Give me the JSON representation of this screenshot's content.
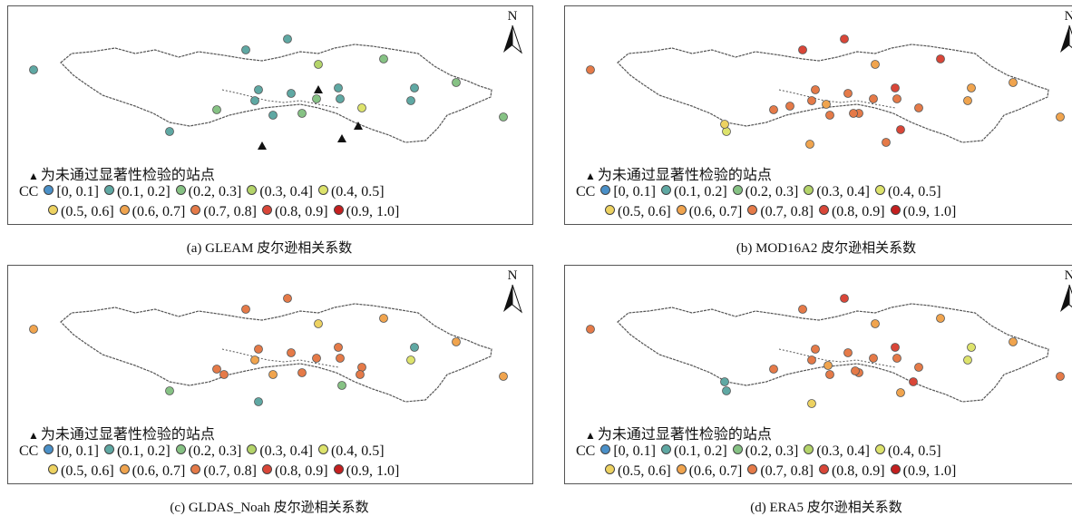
{
  "north_label": "N",
  "note_text": "为未通过显著性检验的站点",
  "legend_title": "CC",
  "legend": [
    {
      "label": "[0, 0.1]",
      "color": "#4a90c8"
    },
    {
      "label": "(0.1, 0.2]",
      "color": "#5fa8a3"
    },
    {
      "label": "(0.2, 0.3]",
      "color": "#86c284"
    },
    {
      "label": "(0.3, 0.4]",
      "color": "#b4d46a"
    },
    {
      "label": "(0.4, 0.5]",
      "color": "#dde36c"
    },
    {
      "label": "(0.5, 0.6]",
      "color": "#edd261"
    },
    {
      "label": "(0.6, 0.7]",
      "color": "#f0a44e"
    },
    {
      "label": "(0.7, 0.8]",
      "color": "#e57a48"
    },
    {
      "label": "(0.8, 0.9]",
      "color": "#d94638"
    },
    {
      "label": "(0.9, 1.0]",
      "color": "#c41f1f"
    }
  ],
  "panels": [
    {
      "caption": "(a) GLEAM 皮尔逊相关系数"
    },
    {
      "caption": "(b) MOD16A2 皮尔逊相关系数"
    },
    {
      "caption": "(c) GLDAS_Noah 皮尔逊相关系数"
    },
    {
      "caption": "(d) ERA5 皮尔逊相关系数"
    }
  ]
}
